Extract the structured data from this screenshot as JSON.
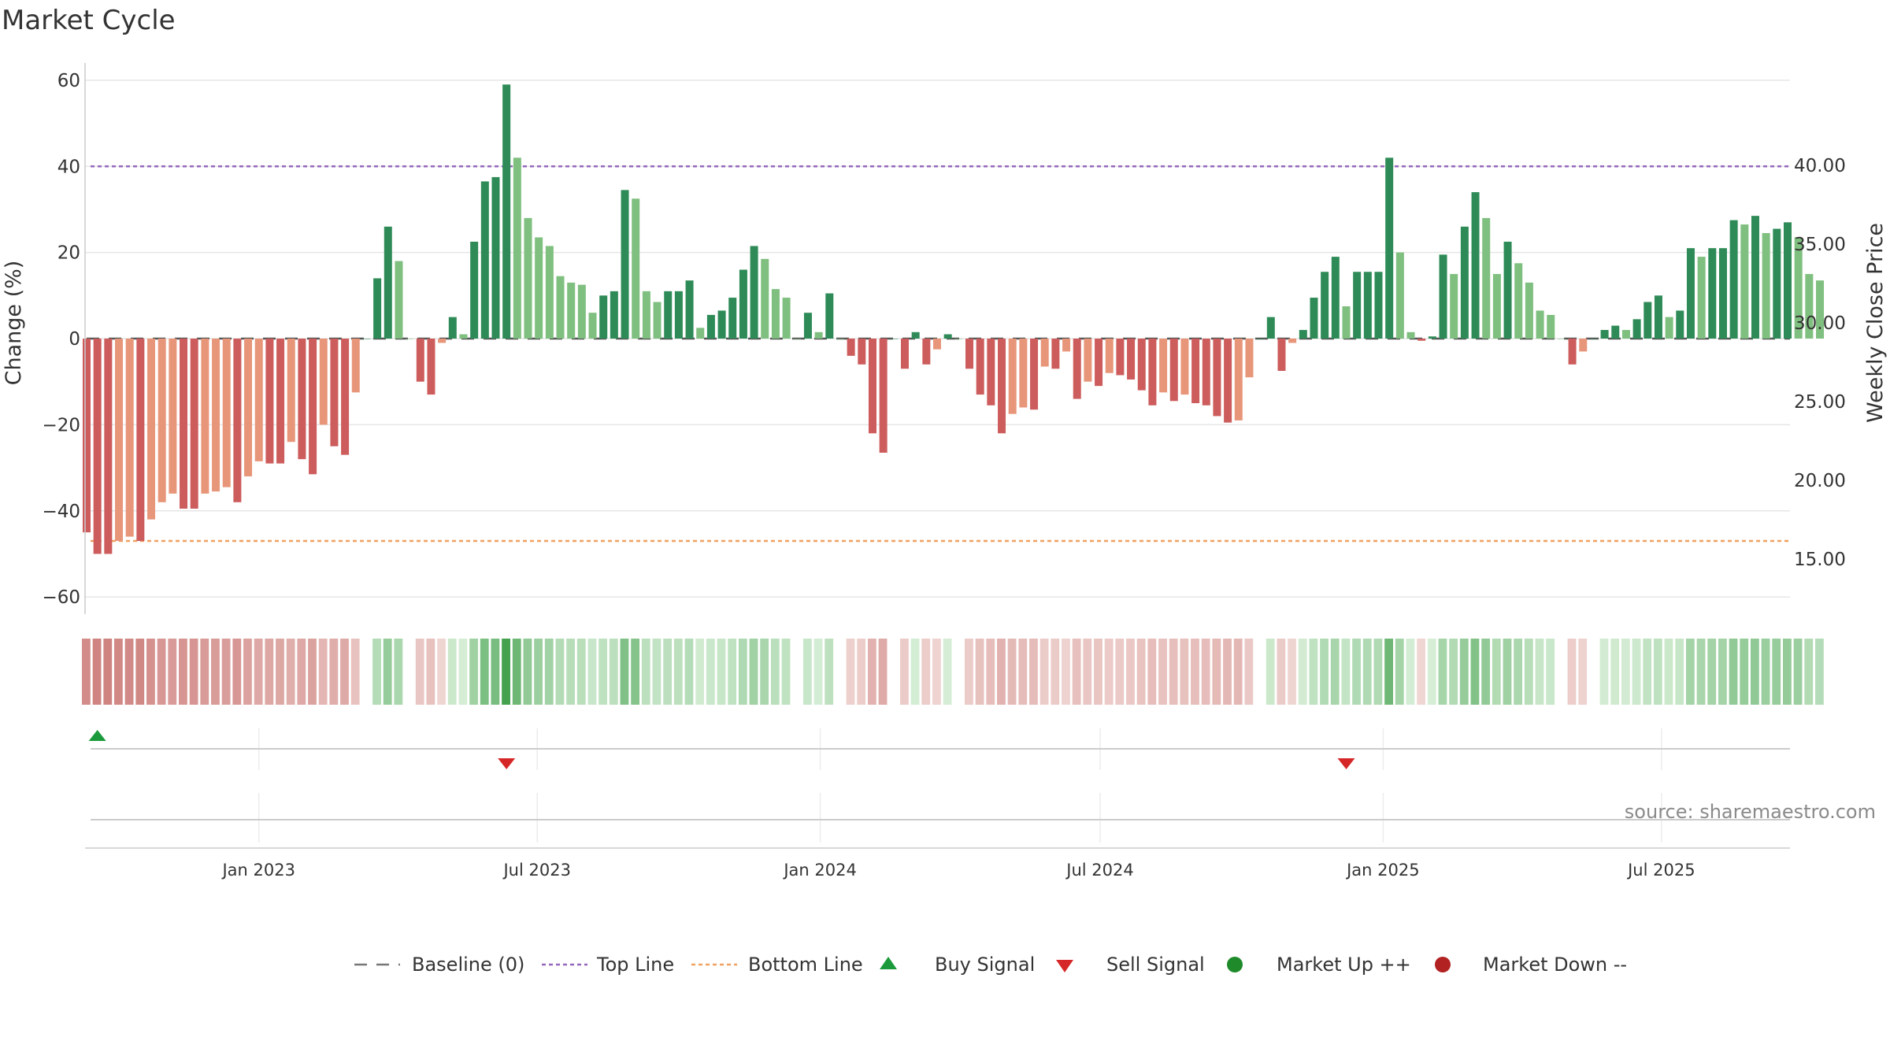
{
  "chart_data": {
    "type": "bar",
    "title": "Market Cycle",
    "ylabel": "Change (%)",
    "y2label": "Weekly Close Price",
    "ylim": [
      -64,
      64
    ],
    "y2lim": [
      11.5,
      46.5
    ],
    "yticks": [
      60,
      40,
      20,
      0,
      -20,
      -40,
      -60
    ],
    "yticklabels": [
      "60",
      "40",
      "20",
      "0",
      "−20",
      "−40",
      "−60"
    ],
    "y2ticks": [
      40,
      35,
      30,
      25,
      20,
      15
    ],
    "y2ticklabels": [
      "40.00",
      "35.00",
      "30.00",
      "25.00",
      "20.00",
      "15.00"
    ],
    "top_line": 40,
    "bottom_line": -47,
    "baseline": 0,
    "x_start": "2022-09-11",
    "x_step_days": 7,
    "x_end": "2025-09-21",
    "xticks": [
      "2023-01-01",
      "2023-07-01",
      "2024-01-01",
      "2024-07-01",
      "2025-01-01",
      "2025-07-01"
    ],
    "xticklabels": [
      "Jan 2023",
      "Jul 2023",
      "Jan 2024",
      "Jul 2024",
      "Jan 2025",
      "Jul 2025"
    ],
    "values": [
      -45,
      -50,
      -50,
      -47,
      -46,
      -47,
      -42,
      -38,
      -36,
      -39.5,
      -39.5,
      -36,
      -35.5,
      -34.5,
      -38,
      -32,
      -28.5,
      -29,
      -29,
      -24,
      -28,
      -31.5,
      -20,
      -25,
      -27,
      -12.5,
      0,
      14,
      26,
      18,
      0,
      -10,
      -13,
      -1,
      5,
      1,
      22.5,
      36.5,
      37.5,
      59,
      42,
      28,
      23.5,
      21.5,
      14.5,
      13,
      12.5,
      6,
      10,
      11,
      34.5,
      32.5,
      11,
      8.5,
      11,
      11,
      13.5,
      2.5,
      5.5,
      6.5,
      9.5,
      16,
      21.5,
      18.5,
      11.5,
      9.5,
      0,
      6,
      1.5,
      10.5,
      0,
      -4,
      -6,
      -22,
      -26.5,
      0,
      -7,
      1.5,
      -6,
      -2.5,
      1,
      0,
      -7,
      -13,
      -15.5,
      -22,
      -17.5,
      -16,
      -16.5,
      -6.5,
      -7,
      -3,
      -14,
      -10,
      -11,
      -8,
      -8.5,
      -9.5,
      -12,
      -15.5,
      -12.5,
      -14.5,
      -13,
      -15,
      -15.5,
      -18,
      -19.5,
      -19,
      -9,
      0,
      5,
      -7.5,
      -1,
      2,
      9.5,
      15.5,
      19,
      7.5,
      15.5,
      15.5,
      15.5,
      42,
      20,
      1.5,
      -0.5,
      0.5,
      19.5,
      15,
      26,
      34,
      28,
      15,
      22.5,
      17.5,
      13,
      6.5,
      5.5,
      0,
      -6,
      -3,
      0,
      2,
      3,
      2,
      4.5,
      8.5,
      10,
      5,
      6.5,
      21,
      19,
      21,
      21,
      27.5,
      26.5,
      28.5,
      24.5,
      25.5,
      27,
      23.5,
      15,
      13.5
    ],
    "signals": [
      {
        "type": "buy",
        "date": "2022-09-18"
      },
      {
        "type": "sell",
        "date": "2023-06-11"
      },
      {
        "type": "sell",
        "date": "2024-12-08"
      }
    ],
    "legend": [
      {
        "label": "Baseline (0)",
        "color": "#777777",
        "symbol": "dash"
      },
      {
        "label": "Top Line",
        "color": "#9467bd",
        "symbol": "dot"
      },
      {
        "label": "Bottom Line",
        "color": "#f0a060",
        "symbol": "dot"
      },
      {
        "label": "Buy Signal",
        "color": "#1a9a3a",
        "symbol": "triangle-up"
      },
      {
        "label": "Sell Signal",
        "color": "#d62728",
        "symbol": "triangle-down"
      },
      {
        "label": "Market Up ++",
        "color": "#1e8a2a",
        "symbol": "circle"
      },
      {
        "label": "Market Down --",
        "color": "#b22222",
        "symbol": "circle"
      }
    ],
    "legend_position": "bottom-center",
    "grid": true
  },
  "colors": {
    "strong_up": "#2e8b57",
    "weak_up": "#7fbf7f",
    "strong_down": "#cd5c5c",
    "weak_down": "#e8967a",
    "top_line": "#9467bd",
    "bottom_line": "#f0a060"
  },
  "source": "source: sharemaestro.com"
}
